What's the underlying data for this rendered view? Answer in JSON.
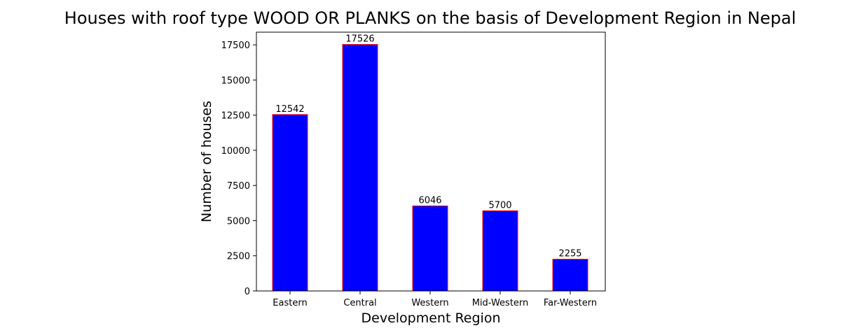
{
  "chart_data": {
    "type": "bar",
    "title": "Houses with roof type WOOD OR PLANKS on the basis of Development Region in Nepal",
    "xlabel": "Development Region",
    "ylabel": "Number of houses",
    "categories": [
      "Eastern",
      "Central",
      "Western",
      "Mid-Western",
      "Far-Western"
    ],
    "values": [
      12542,
      17526,
      6046,
      5700,
      2255
    ],
    "data_labels": [
      "12542",
      "17526",
      "6046",
      "5700",
      "2255"
    ],
    "ylim": [
      0,
      18400
    ],
    "yticks": [
      0,
      2500,
      5000,
      7500,
      10000,
      12500,
      15000,
      17500
    ],
    "ytick_labels": [
      "0",
      "2500",
      "5000",
      "7500",
      "10000",
      "12500",
      "15000",
      "17500"
    ],
    "grid": false,
    "legend": "none",
    "colors": {
      "bar_fill": "#0000ff",
      "bar_edge": "#ff0000"
    }
  }
}
